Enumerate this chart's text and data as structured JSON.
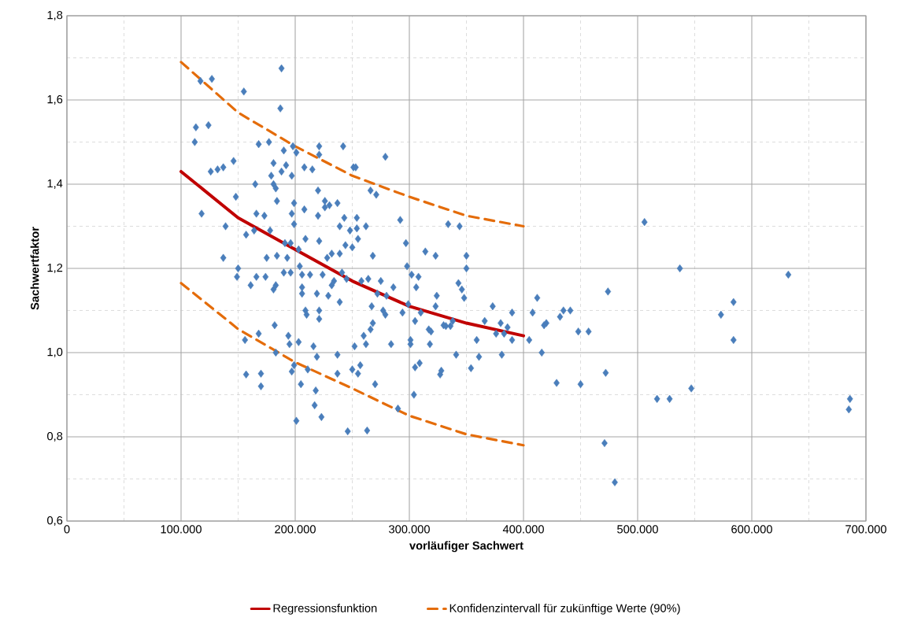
{
  "chart_data": {
    "type": "scatter",
    "xlabel": "vorläufiger Sachwert",
    "ylabel": "Sachwertfaktor",
    "xlim": [
      0,
      700000
    ],
    "ylim": [
      0.6,
      1.8
    ],
    "xticks": [
      0,
      {
        "value": 100000,
        "label": "100.000"
      },
      {
        "value": 200000,
        "label": "200.000"
      },
      {
        "value": 300000,
        "label": "300.000"
      },
      {
        "value": 400000,
        "label": "400.000"
      },
      {
        "value": 500000,
        "label": "500.000"
      },
      {
        "value": 600000,
        "label": "600.000"
      },
      {
        "value": 700000,
        "label": "700.000"
      }
    ],
    "yticks": [
      {
        "value": 0.6,
        "label": "0,6"
      },
      {
        "value": 0.8,
        "label": "0,8"
      },
      {
        "value": 1.0,
        "label": "1,0"
      },
      {
        "value": 1.2,
        "label": "1,2"
      },
      {
        "value": 1.4,
        "label": "1,4"
      },
      {
        "value": 1.6,
        "label": "1,6"
      },
      {
        "value": 1.8,
        "label": "1,8"
      }
    ],
    "grid": true,
    "legend": "bottom",
    "series": [
      {
        "color": "#4a7ebb",
        "marker": "diamond",
        "x": [
          112000,
          113000,
          117000,
          124000,
          127000,
          118000,
          126000,
          132000,
          137000,
          139000,
          137000,
          146000,
          148000,
          149000,
          150000,
          155000,
          156000,
          157000,
          157000,
          161000,
          164000,
          165000,
          166000,
          166000,
          168000,
          168000,
          170000,
          170000,
          173000,
          174000,
          175000,
          177000,
          178000,
          179000,
          181000,
          181000,
          181000,
          183000,
          182000,
          183000,
          183000,
          184000,
          184000,
          187000,
          188000,
          188000,
          190000,
          190000,
          191000,
          192000,
          193000,
          194000,
          195000,
          196000,
          196000,
          197000,
          197000,
          197000,
          198000,
          199000,
          199000,
          199000,
          201000,
          201000,
          203000,
          203000,
          204000,
          205000,
          206000,
          206000,
          206000,
          208000,
          208000,
          209000,
          209000,
          210000,
          211000,
          213000,
          215000,
          216000,
          217000,
          218000,
          219000,
          219000,
          220000,
          220000,
          221000,
          221000,
          221000,
          221000,
          221000,
          223000,
          224000,
          226000,
          226000,
          228000,
          229000,
          230000,
          232000,
          232000,
          234000,
          237000,
          237000,
          237000,
          239000,
          239000,
          239000,
          241000,
          242000,
          243000,
          244000,
          245000,
          246000,
          248000,
          250000,
          250000,
          251000,
          252000,
          253000,
          254000,
          254000,
          255000,
          255000,
          257000,
          258000,
          260000,
          262000,
          262000,
          263000,
          264000,
          266000,
          266000,
          267000,
          268000,
          268000,
          270000,
          271000,
          272000,
          275000,
          277000,
          279000,
          279000,
          280000,
          284000,
          286000,
          290000,
          292000,
          294000,
          297000,
          298000,
          299000,
          301000,
          301000,
          302000,
          304000,
          305000,
          305000,
          306000,
          308000,
          309000,
          310000,
          314000,
          317000,
          318000,
          319000,
          323000,
          323000,
          324000,
          327000,
          328000,
          330000,
          332000,
          334000,
          336000,
          338000,
          341000,
          343000,
          344000,
          346000,
          348000,
          350000,
          350000,
          354000,
          359000,
          361000,
          366000,
          373000,
          376000,
          380000,
          381000,
          383000,
          386000,
          390000,
          390000,
          405000,
          408000,
          412000,
          416000,
          418000,
          420000,
          429000,
          432000,
          435000,
          441000,
          448000,
          450000,
          457000,
          471000,
          472000,
          474000,
          480000,
          506000,
          517000,
          528000,
          537000,
          547000,
          573000,
          584000,
          584000,
          632000,
          685000,
          686000
        ],
        "values": [
          1.5,
          1.535,
          1.645,
          1.54,
          1.65,
          1.33,
          1.43,
          1.435,
          1.44,
          1.3,
          1.225,
          1.455,
          1.37,
          1.18,
          1.2,
          1.62,
          1.03,
          0.948,
          1.28,
          1.16,
          1.29,
          1.4,
          1.33,
          1.18,
          1.495,
          1.045,
          0.95,
          0.92,
          1.325,
          1.18,
          1.225,
          1.5,
          1.29,
          1.42,
          1.4,
          1.45,
          1.15,
          1.16,
          1.065,
          1.0,
          1.39,
          1.36,
          1.23,
          1.58,
          1.675,
          1.43,
          1.48,
          1.19,
          1.26,
          1.445,
          1.225,
          1.04,
          1.02,
          1.26,
          1.19,
          0.955,
          1.33,
          1.42,
          1.49,
          1.355,
          1.305,
          0.97,
          0.838,
          1.475,
          1.025,
          1.245,
          1.205,
          0.925,
          1.185,
          1.155,
          1.14,
          1.34,
          1.44,
          1.27,
          1.1,
          1.09,
          0.96,
          1.185,
          1.435,
          1.015,
          0.875,
          0.91,
          0.99,
          1.14,
          1.385,
          1.325,
          1.265,
          1.49,
          1.47,
          1.1,
          1.08,
          0.847,
          1.185,
          1.345,
          1.36,
          1.225,
          1.135,
          1.35,
          1.235,
          1.16,
          1.17,
          0.95,
          0.995,
          1.355,
          1.3,
          1.12,
          1.235,
          1.19,
          1.49,
          1.32,
          1.255,
          1.175,
          0.813,
          1.29,
          0.96,
          1.25,
          1.44,
          1.015,
          1.44,
          1.295,
          1.32,
          1.27,
          0.95,
          0.97,
          1.17,
          1.04,
          1.02,
          1.3,
          0.815,
          1.175,
          1.055,
          1.385,
          1.11,
          1.07,
          1.23,
          0.925,
          1.375,
          1.14,
          1.17,
          1.1,
          1.09,
          1.465,
          1.135,
          1.02,
          1.155,
          0.867,
          1.315,
          1.095,
          1.26,
          1.205,
          1.115,
          1.03,
          1.02,
          1.185,
          0.9,
          1.075,
          0.965,
          1.155,
          1.18,
          0.975,
          1.095,
          1.24,
          1.055,
          1.02,
          1.05,
          1.11,
          1.23,
          1.135,
          0.948,
          0.957,
          1.065,
          1.063,
          1.305,
          1.063,
          1.075,
          0.995,
          1.165,
          1.3,
          1.15,
          1.13,
          1.23,
          1.2,
          0.963,
          1.03,
          0.99,
          1.075,
          1.11,
          1.045,
          1.07,
          0.995,
          1.045,
          1.06,
          1.03,
          1.095,
          1.03,
          1.095,
          1.13,
          1.0,
          1.065,
          1.07,
          0.928,
          1.085,
          1.1,
          1.1,
          1.05,
          0.925,
          1.05,
          0.785,
          0.952,
          1.145,
          0.692,
          1.31,
          0.89,
          0.89,
          1.2,
          0.915,
          1.09,
          1.12,
          1.03,
          1.185,
          0.865,
          0.89
        ]
      },
      {
        "type": "line",
        "name": "Regressionsfunktion",
        "color": "#c00000",
        "marker": "none",
        "line_style": "solid",
        "x": [
          100000,
          150000,
          200000,
          250000,
          300000,
          350000,
          400000
        ],
        "values": [
          1.43,
          1.32,
          1.245,
          1.17,
          1.11,
          1.07,
          1.04
        ]
      },
      {
        "type": "line",
        "name": "Konfidenzintervall für zukünftige Werte (90%)",
        "color": "#e46c0a",
        "marker": "none",
        "line_style": "dashed",
        "x": [
          100000,
          150000,
          200000,
          250000,
          300000,
          350000,
          400000
        ],
        "values": [
          1.69,
          1.57,
          1.49,
          1.42,
          1.37,
          1.325,
          1.3
        ]
      },
      {
        "type": "line",
        "color": "#e46c0a",
        "marker": "none",
        "line_style": "dashed",
        "x": [
          100000,
          150000,
          200000,
          250000,
          300000,
          350000,
          400000
        ],
        "values": [
          1.165,
          1.056,
          0.977,
          0.915,
          0.85,
          0.806,
          0.78
        ]
      }
    ]
  }
}
